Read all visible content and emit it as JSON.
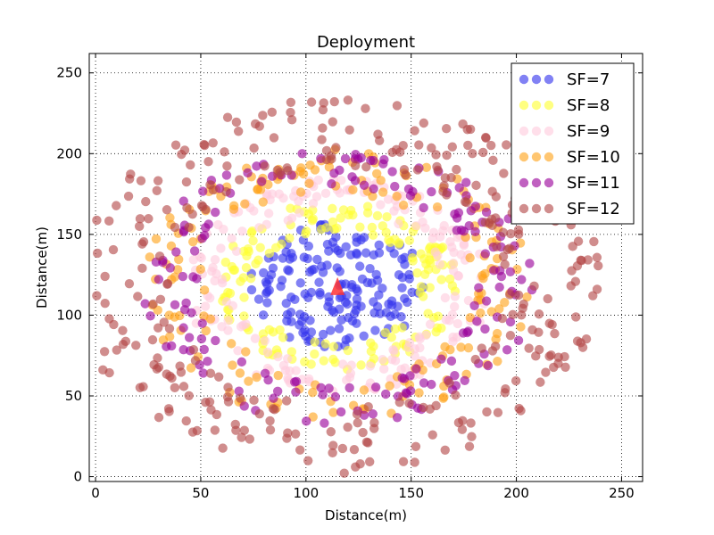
{
  "chart_data": {
    "type": "scatter",
    "title": "Deployment",
    "xlabel": "Distance(m)",
    "ylabel": "Distance(m)",
    "xlim": [
      -3,
      260
    ],
    "ylim": [
      -3,
      262
    ],
    "xticks": [
      0,
      50,
      100,
      150,
      200,
      250
    ],
    "yticks": [
      0,
      50,
      100,
      150,
      200,
      250
    ],
    "grid": true,
    "grid_style": "dotted",
    "legend_position": "top-right",
    "center": {
      "x": 115,
      "y": 118,
      "marker": "triangle",
      "color": "#ff3333"
    },
    "series": [
      {
        "name": "SF=7",
        "color": "#3333ee",
        "r_range": [
          0,
          42
        ],
        "count": 170,
        "seed": 11
      },
      {
        "name": "SF=8",
        "color": "#ffff33",
        "r_range": [
          38,
          57
        ],
        "count": 160,
        "seed": 23
      },
      {
        "name": "SF=9",
        "color": "#ffccdd",
        "r_range": [
          50,
          72
        ],
        "count": 190,
        "seed": 37
      },
      {
        "name": "SF=10",
        "color": "#ffa31a",
        "r_range": [
          62,
          92
        ],
        "count": 170,
        "seed": 41
      },
      {
        "name": "SF=11",
        "color": "#990099",
        "r_range": [
          66,
          94
        ],
        "count": 170,
        "seed": 53
      },
      {
        "name": "SF=12",
        "color": "#b34747",
        "r_range": [
          80,
          126
        ],
        "count": 330,
        "seed": 67
      }
    ]
  }
}
